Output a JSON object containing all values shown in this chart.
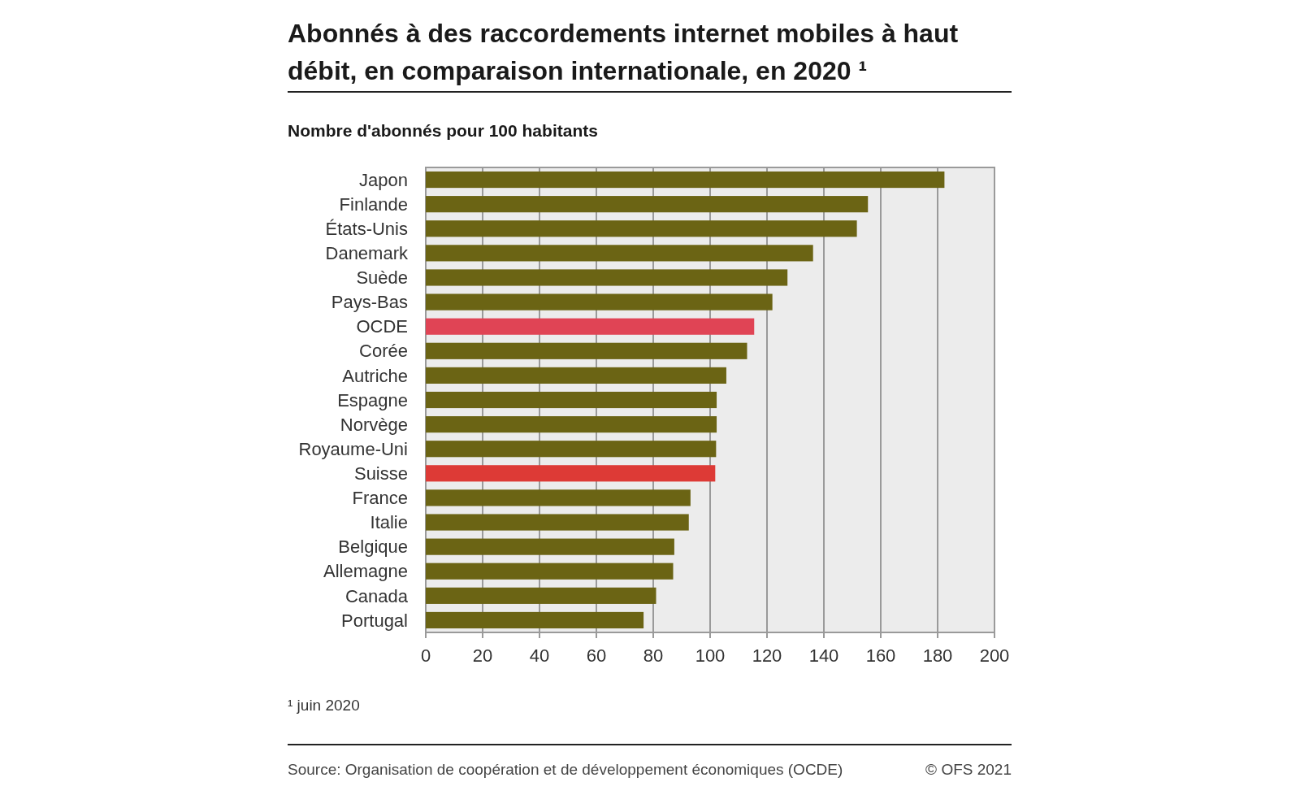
{
  "chart_data": {
    "type": "bar",
    "orientation": "horizontal",
    "title": "Abonnés à des raccordements internet mobiles à haut débit, en comparaison internationale, en 2020 ¹",
    "subtitle": "Nombre d'abonnés pour 100 habitants",
    "categories": [
      "Japon",
      "Finlande",
      "États-Unis",
      "Danemark",
      "Suède",
      "Pays-Bas",
      "OCDE",
      "Corée",
      "Autriche",
      "Espagne",
      "Norvège",
      "Royaume-Uni",
      "Suisse",
      "France",
      "Italie",
      "Belgique",
      "Allemagne",
      "Canada",
      "Portugal"
    ],
    "values": [
      182.4,
      155.5,
      151.6,
      136.2,
      127.2,
      121.9,
      115.5,
      113.0,
      105.7,
      102.3,
      102.3,
      102.1,
      101.8,
      93.1,
      92.5,
      87.4,
      87.0,
      81.0,
      76.6
    ],
    "colors": [
      "#6b6414",
      "#6b6414",
      "#6b6414",
      "#6b6414",
      "#6b6414",
      "#6b6414",
      "#e04455",
      "#6b6414",
      "#6b6414",
      "#6b6414",
      "#6b6414",
      "#6b6414",
      "#dd3a36",
      "#6b6414",
      "#6b6414",
      "#6b6414",
      "#6b6414",
      "#6b6414",
      "#6b6414"
    ],
    "xlim": [
      0,
      200
    ],
    "xticks": [
      0,
      20,
      40,
      60,
      80,
      100,
      120,
      140,
      160,
      180,
      200
    ],
    "grid": "x",
    "annotations": [
      "¹ juin 2020",
      "Source: Organisation de coopération et de développement économiques (OCDE)",
      "© OFS 2021"
    ]
  }
}
